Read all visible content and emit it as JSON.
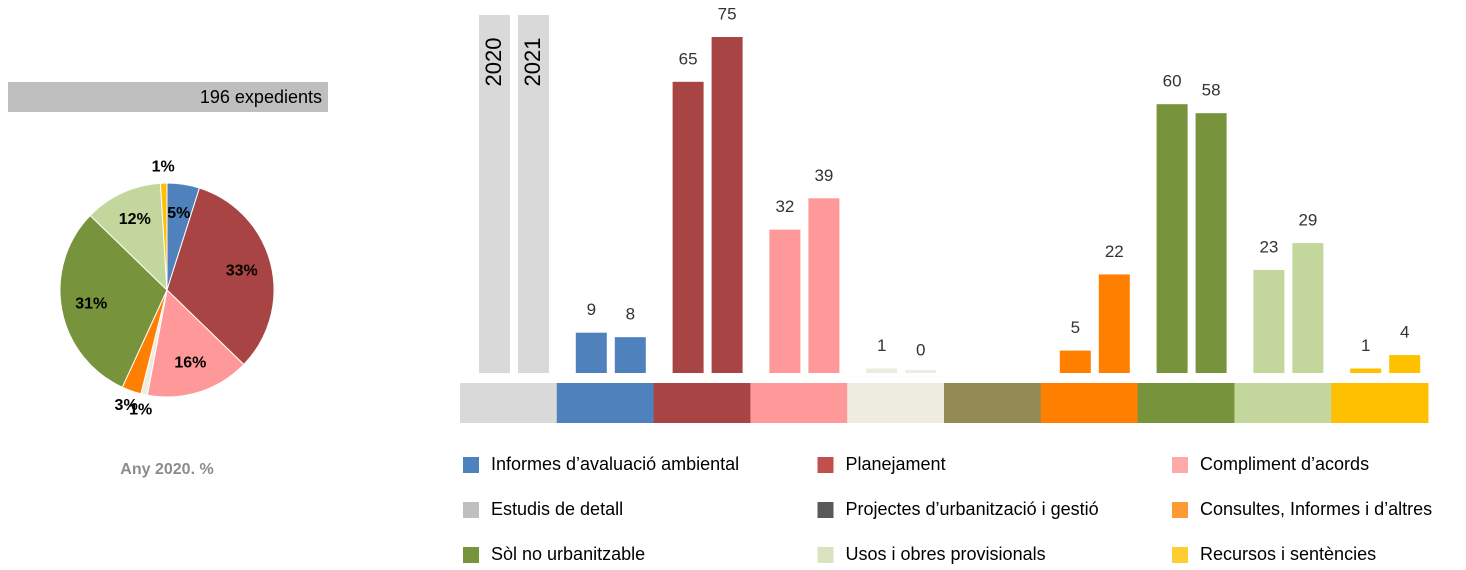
{
  "chart_data": [
    {
      "type": "pie",
      "title": "196 expedients",
      "subtitle": "Any 2020. %",
      "values": [
        5,
        33,
        16,
        1,
        3,
        31,
        12,
        1
      ],
      "value_labels": [
        "5%",
        "33%",
        "16%",
        "1%",
        "3%",
        "31%",
        "12%",
        "1%"
      ],
      "colors": [
        "#4f81bd",
        "#a84444",
        "#ff9999",
        "#eeece1",
        "#ff7f00",
        "#77933c",
        "#c3d69b",
        "#ffc000"
      ]
    },
    {
      "type": "bar",
      "categories": [
        null,
        null,
        null,
        null,
        null,
        null,
        null,
        null,
        null,
        null
      ],
      "category_colors": [
        "#d9d9d9",
        "#4f81bd",
        "#a84444",
        "#ff9999",
        "#eeece1",
        "#948a54",
        "#ff7f00",
        "#77933c",
        "#c3d69b",
        "#ffc000"
      ],
      "series": [
        {
          "name": "2020",
          "values": [
            null,
            9,
            65,
            32,
            1,
            null,
            5,
            60,
            23,
            1
          ]
        },
        {
          "name": "2021",
          "values": [
            null,
            8,
            75,
            39,
            0,
            null,
            22,
            58,
            29,
            4
          ]
        }
      ],
      "ylim": [
        0,
        75
      ]
    }
  ],
  "legend": [
    {
      "name": "Informes d’avaluació ambiental",
      "color": "#4f81bd"
    },
    {
      "name": "Planejament",
      "color": "#c0504d"
    },
    {
      "name": "Compliment d’acords",
      "color": "#ffaaaa"
    },
    {
      "name": "Estudis de detall",
      "color": "#bfbfbf"
    },
    {
      "name": "Projectes d’urbanització i gestió",
      "color": "#595959"
    },
    {
      "name": "Consultes, Informes i d’altres",
      "color": "#ff9933"
    },
    {
      "name": "Sòl no urbanitzable",
      "color": "#77933c"
    },
    {
      "name": "Usos i obres provisionals",
      "color": "#d7e4bd"
    },
    {
      "name": "Recursos i sentències",
      "color": "#ffcc33"
    }
  ]
}
